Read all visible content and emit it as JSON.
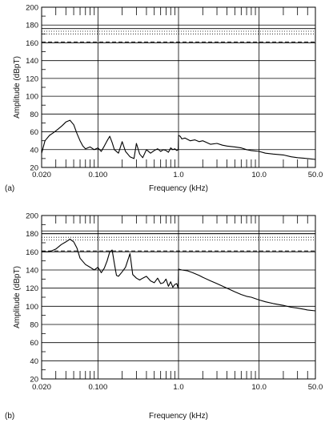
{
  "chart_data": [
    {
      "type": "line",
      "panel_label": "(a)",
      "xlabel": "Frequency (kHz)",
      "ylabel": "Amplitude (dBpT)",
      "xscale": "log",
      "xlim": [
        0.02,
        50.0
      ],
      "ylim": [
        20,
        200
      ],
      "xticks": [
        0.02,
        0.1,
        1.0,
        10.0,
        50.0
      ],
      "xtick_labels": [
        "0.020",
        "0.100",
        "1.0",
        "10.0",
        "50.0"
      ],
      "yticks": [
        20,
        40,
        60,
        80,
        100,
        120,
        140,
        160,
        180,
        200
      ],
      "ytick_labels": [
        "20",
        "40",
        "60",
        "80",
        "100",
        "120",
        "140",
        "160",
        "180",
        "200"
      ],
      "reference_lines": [
        {
          "y": 176,
          "style": "solid"
        },
        {
          "y": 173,
          "style": "dotted"
        },
        {
          "y": 170,
          "style": "dotted"
        },
        {
          "y": 161,
          "style": "dashed"
        }
      ],
      "series": [
        {
          "x": [
            0.02,
            0.022,
            0.025,
            0.028,
            0.032,
            0.036,
            0.04,
            0.045,
            0.05,
            0.055,
            0.06,
            0.065,
            0.07,
            0.08,
            0.09,
            0.1,
            0.11,
            0.12,
            0.13,
            0.14,
            0.15,
            0.16,
            0.18,
            0.2,
            0.22,
            0.25,
            0.28,
            0.3,
            0.33,
            0.36,
            0.4,
            0.45,
            0.5,
            0.55,
            0.6,
            0.65,
            0.7,
            0.75,
            0.8,
            0.85,
            0.9,
            0.95,
            0.99,
            1.0,
            1.05,
            1.1,
            1.2,
            1.4,
            1.6,
            1.8,
            2.0,
            2.5,
            3.0,
            3.5,
            4.0,
            5.0,
            6.0,
            7.0,
            8.0,
            10.0,
            12.0,
            15.0,
            20.0,
            25.0,
            30.0,
            40.0,
            50.0
          ],
          "y": [
            36,
            50,
            56,
            59,
            63,
            67,
            71,
            73,
            68,
            58,
            50,
            44,
            41,
            43,
            40,
            42,
            38,
            44,
            50,
            55,
            48,
            40,
            36,
            49,
            38,
            32,
            30,
            47,
            35,
            31,
            40,
            36,
            39,
            41,
            38,
            40,
            39,
            37,
            42,
            40,
            41,
            39,
            40,
            56,
            55,
            52,
            53,
            50,
            51,
            49,
            50,
            46,
            47,
            45,
            44,
            43,
            42,
            40,
            39,
            38,
            36,
            35,
            34,
            32,
            31,
            30,
            29
          ]
        }
      ]
    },
    {
      "type": "line",
      "panel_label": "(b)",
      "xlabel": "Frequency (kHz)",
      "ylabel": "Amplitude (dBpT)",
      "xscale": "log",
      "xlim": [
        0.02,
        50.0
      ],
      "ylim": [
        20,
        200
      ],
      "xticks": [
        0.02,
        0.1,
        1.0,
        10.0,
        50.0
      ],
      "xtick_labels": [
        "0.020",
        "0.100",
        "1.0",
        "10.0",
        "50.0"
      ],
      "yticks": [
        20,
        40,
        60,
        80,
        100,
        120,
        140,
        160,
        180,
        200
      ],
      "ytick_labels": [
        "20",
        "40",
        "60",
        "80",
        "100",
        "120",
        "140",
        "160",
        "180",
        "200"
      ],
      "reference_lines": [
        {
          "y": 183,
          "style": "solid"
        },
        {
          "y": 180,
          "style": "solid"
        },
        {
          "y": 176,
          "style": "dotted"
        },
        {
          "y": 173,
          "style": "dotted"
        },
        {
          "y": 161,
          "style": "dashed"
        }
      ],
      "series": [
        {
          "x": [
            0.02,
            0.025,
            0.03,
            0.035,
            0.04,
            0.045,
            0.05,
            0.055,
            0.06,
            0.07,
            0.08,
            0.09,
            0.1,
            0.11,
            0.12,
            0.13,
            0.14,
            0.15,
            0.16,
            0.17,
            0.18,
            0.2,
            0.22,
            0.25,
            0.27,
            0.3,
            0.33,
            0.36,
            0.4,
            0.45,
            0.5,
            0.55,
            0.6,
            0.65,
            0.7,
            0.75,
            0.8,
            0.85,
            0.9,
            0.95,
            0.99,
            1.0,
            1.1,
            1.3,
            1.5,
            1.8,
            2.0,
            2.5,
            3.0,
            4.0,
            5.0,
            6.0,
            7.0,
            8.0,
            10.0,
            12.0,
            15.0,
            20.0,
            25.0,
            30.0,
            40.0,
            50.0
          ],
          "y": [
            160,
            160,
            163,
            168,
            171,
            174,
            171,
            164,
            153,
            146,
            143,
            140,
            143,
            137,
            142,
            150,
            160,
            162,
            147,
            134,
            133,
            138,
            143,
            158,
            135,
            131,
            129,
            131,
            133,
            128,
            126,
            131,
            125,
            126,
            130,
            122,
            127,
            121,
            124,
            125,
            120,
            141,
            140,
            139,
            137,
            134,
            132,
            128,
            125,
            120,
            116,
            113,
            111,
            110,
            107,
            105,
            103,
            101,
            99,
            98,
            96,
            95
          ]
        }
      ]
    }
  ]
}
